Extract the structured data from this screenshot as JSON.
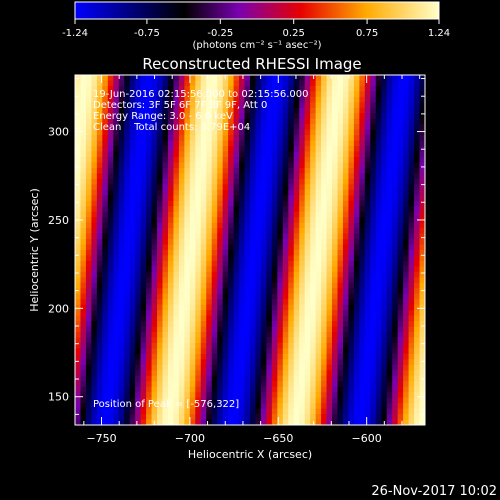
{
  "chart_data": {
    "type": "heatmap",
    "title": "Reconstructed RHESSI Image",
    "xlabel": "Heliocentric X (arcsec)",
    "ylabel": "Heliocentric Y (arcsec)",
    "xlim": [
      -765,
      -567
    ],
    "ylim": [
      134,
      332
    ],
    "xticks": [
      -750,
      -700,
      -650,
      -600
    ],
    "yticks": [
      150,
      200,
      250,
      300
    ],
    "colorbar": {
      "min": -1.24,
      "max": 1.24,
      "ticks": [
        "-1.24",
        "-0.75",
        "-0.25",
        "0.25",
        "0.75",
        "1.24"
      ],
      "units_label": "(photons cm⁻² s⁻¹ asec⁻²)",
      "colormap": [
        "#0000ff",
        "#000000",
        "#7a00b0",
        "#e60000",
        "#ffaa00",
        "#ffffc8"
      ]
    },
    "fringe_pattern": {
      "description_values": {
        "period_arcsec": 72,
        "peak_x_at_bottom_arcsec": -712,
        "tilt_x_shift_per_arcsec_y": 0.127
      }
    },
    "annotations": {
      "time": "19-Jun-2016 02:15:56.000 to 02:15:56.000",
      "detectors": "Detectors: 3F 5F 6F 7F 8F 9F, Att 0",
      "energy": "Energy Range: 3.0 - 6.0 keV",
      "clean": "Clean    Total counts: 3.79E+04",
      "peak": "Position of Peak = [-576,322]"
    },
    "peak_position": [
      -576,
      322
    ],
    "total_counts": "3.79E+04"
  },
  "footer": {
    "timestamp": "26-Nov-2017 10:02"
  }
}
